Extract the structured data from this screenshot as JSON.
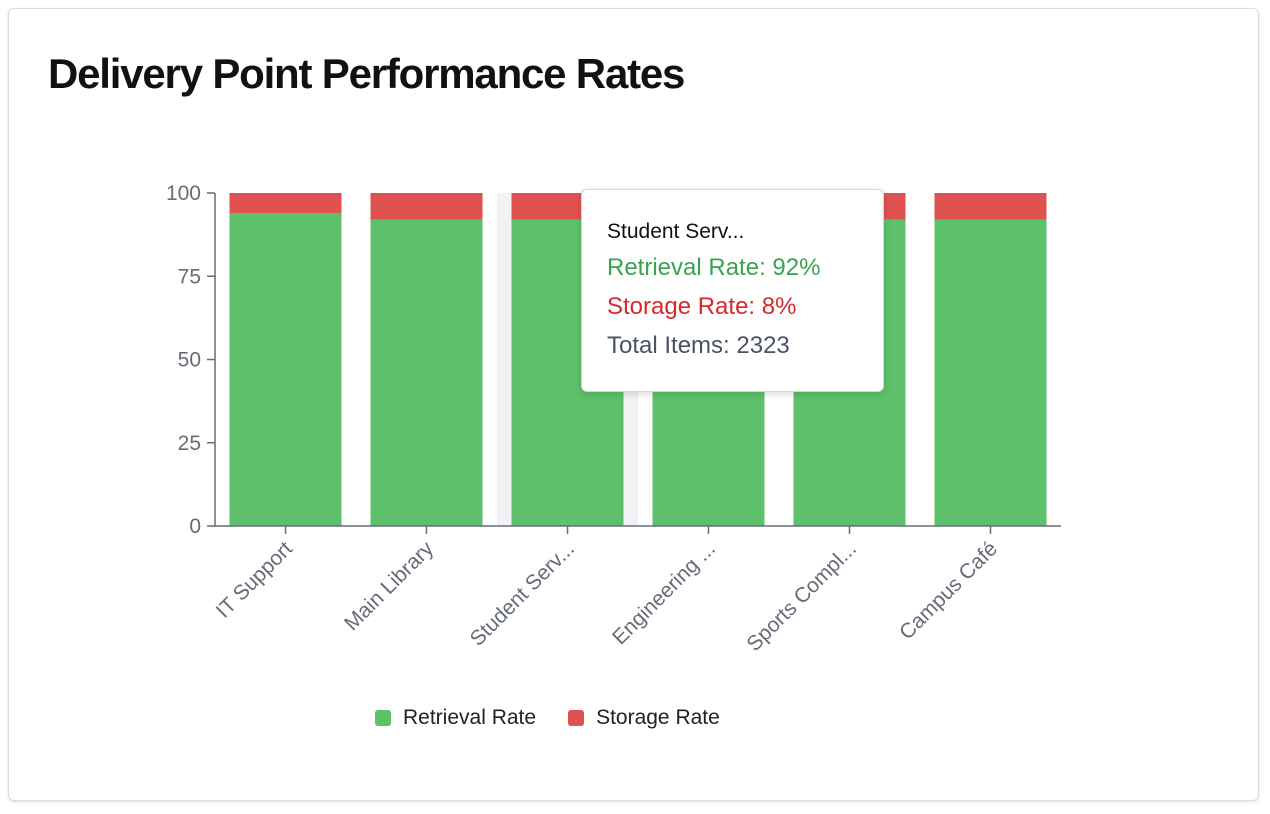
{
  "colors": {
    "retrieval": "#5cc16a",
    "storage": "#e0524f",
    "axis": "#666c77",
    "hover": "#f2f2f4",
    "tooltip_retrieval": "#3aa34f",
    "tooltip_storage": "#d42a2a",
    "tooltip_total": "#4a5366"
  },
  "chart_data": {
    "type": "bar",
    "stacked": true,
    "title": "Delivery Point Performance Rates",
    "categories": [
      "IT Support",
      "Main Library",
      "Student Serv...",
      "Engineering ...",
      "Sports Compl...",
      "Campus Café"
    ],
    "series": [
      {
        "name": "Retrieval Rate",
        "values": [
          94,
          92,
          92,
          92,
          92,
          92
        ]
      },
      {
        "name": "Storage Rate",
        "values": [
          6,
          8,
          8,
          8,
          8,
          8
        ]
      }
    ],
    "ylim": [
      0,
      100
    ],
    "yticks": [
      0,
      25,
      50,
      75,
      100
    ],
    "legend": "bottom",
    "grid": false,
    "highlighted_index": 2
  },
  "tooltip": {
    "title": "Student Serv...",
    "retrieval": "Retrieval Rate: 92%",
    "storage": "Storage Rate: 8%",
    "total": "Total Items: 2323"
  }
}
